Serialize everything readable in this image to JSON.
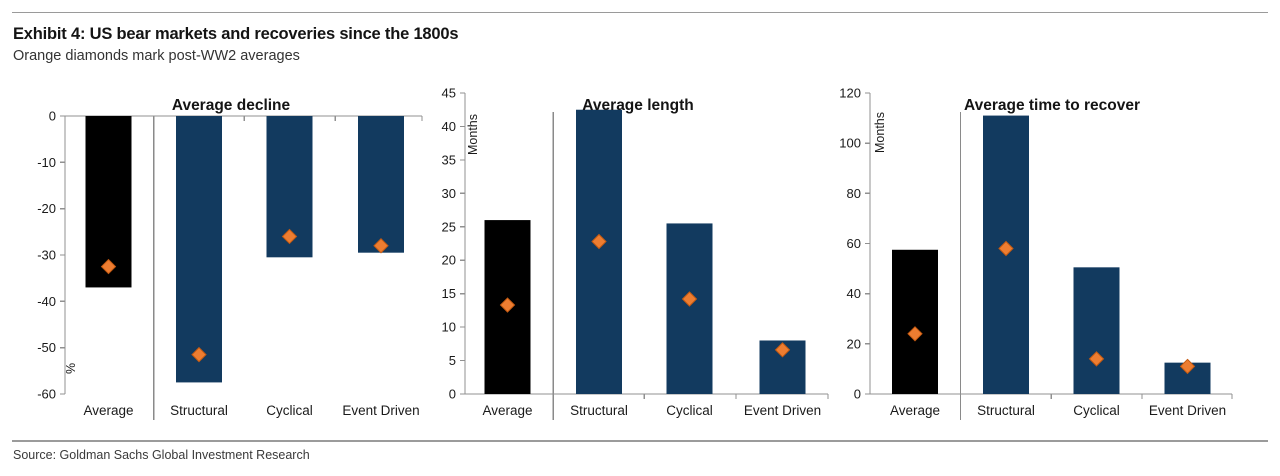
{
  "header": {
    "title": "Exhibit 4: US bear markets and recoveries since the 1800s",
    "subtitle": "Orange diamonds mark post-WW2 averages"
  },
  "footer": {
    "source": "Source: Goldman Sachs Global Investment Research"
  },
  "colors": {
    "average_bar": "#000000",
    "regime_bar": "#123A5F",
    "diamond_fill": "#ED7D31",
    "diamond_edge": "#C55A11",
    "axis_line": "#909090",
    "separator_line": "#8a8a8a",
    "label_text": "#1a1a1a",
    "title_text": "#141414"
  },
  "chart_data": [
    {
      "type": "bar",
      "title": "Average decline",
      "unit_label": "%",
      "unit_label_position": "bottom",
      "categories": [
        "Average",
        "Structural",
        "Cyclical",
        "Event Driven"
      ],
      "bars": [
        -37,
        -57.5,
        -30.5,
        -29.5
      ],
      "post_ww2_diamonds": [
        -32.5,
        -51.5,
        -26,
        -28
      ],
      "bar_colors": [
        "#000000",
        "#123A5F",
        "#123A5F",
        "#123A5F"
      ],
      "ylim": [
        -60,
        0
      ],
      "ytick_step": 10,
      "grid": false,
      "legend": "none"
    },
    {
      "type": "bar",
      "title": "Average length",
      "unit_label": "Months",
      "unit_label_position": "top",
      "categories": [
        "Average",
        "Structural",
        "Cyclical",
        "Event Driven"
      ],
      "bars": [
        26,
        42.5,
        25.5,
        8
      ],
      "post_ww2_diamonds": [
        13.3,
        22.8,
        14.2,
        6.6
      ],
      "bar_colors": [
        "#000000",
        "#123A5F",
        "#123A5F",
        "#123A5F"
      ],
      "ylim": [
        0,
        45
      ],
      "ytick_step": 5,
      "grid": false,
      "legend": "none"
    },
    {
      "type": "bar",
      "title": "Average time to recover",
      "unit_label": "Months",
      "unit_label_position": "top",
      "categories": [
        "Average",
        "Structural",
        "Cyclical",
        "Event Driven"
      ],
      "bars": [
        57.5,
        111,
        50.5,
        12.5
      ],
      "post_ww2_diamonds": [
        24,
        58,
        14,
        11
      ],
      "bar_colors": [
        "#000000",
        "#123A5F",
        "#123A5F",
        "#123A5F"
      ],
      "ylim": [
        0,
        120
      ],
      "ytick_step": 20,
      "grid": false,
      "legend": "none"
    }
  ]
}
